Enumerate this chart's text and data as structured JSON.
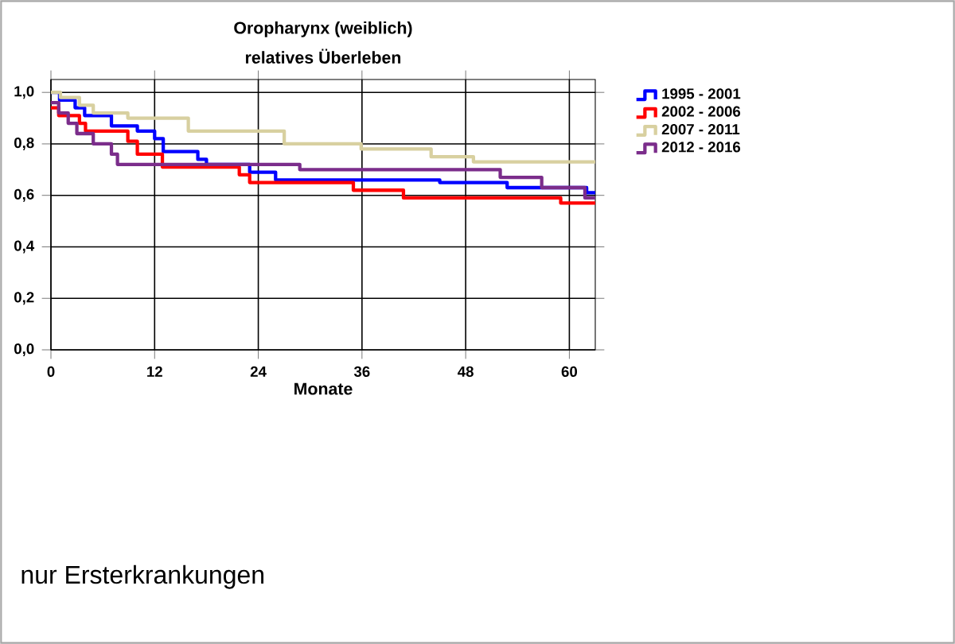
{
  "chart_data": {
    "type": "step",
    "title": "Oropharynx (weiblich)",
    "subtitle": "relatives Überleben",
    "xlabel": "Monate",
    "xlim": [
      0,
      63
    ],
    "xticks": [
      0,
      12,
      24,
      36,
      48,
      60
    ],
    "ylim": [
      0,
      1.05
    ],
    "yticks": [
      {
        "value": 0,
        "label": "0,0"
      },
      {
        "value": 0.2,
        "label": "0,2"
      },
      {
        "value": 0.4,
        "label": "0,4"
      },
      {
        "value": 0.6,
        "label": "0,6"
      },
      {
        "value": 0.8,
        "label": "0,8"
      },
      {
        "value": 1.0,
        "label": "1,0"
      }
    ],
    "grid": true,
    "legend": "top right",
    "marker": "none",
    "line_style": "solid",
    "series": [
      {
        "name": "1995 - 2001",
        "color": "#0000ff",
        "x": [
          0,
          1,
          2.8,
          3.9,
          7,
          10,
          12,
          13,
          17,
          18,
          23,
          26,
          45,
          52.8,
          62,
          63
        ],
        "values": [
          1.0,
          0.97,
          0.94,
          0.91,
          0.87,
          0.85,
          0.82,
          0.77,
          0.74,
          0.72,
          0.69,
          0.66,
          0.65,
          0.63,
          0.61,
          0.61
        ]
      },
      {
        "name": "2002 - 2006",
        "color": "#ff0000",
        "x": [
          0,
          0.9,
          3.3,
          4,
          8.9,
          10,
          12.9,
          21.8,
          23,
          35,
          40.8,
          59,
          63
        ],
        "values": [
          0.94,
          0.91,
          0.88,
          0.85,
          0.81,
          0.76,
          0.71,
          0.68,
          0.65,
          0.62,
          0.59,
          0.57,
          0.57
        ]
      },
      {
        "name": "2007 - 2011",
        "color": "#d8d0a0",
        "x": [
          0,
          1.1,
          3.3,
          4.9,
          8.9,
          15.9,
          27,
          35.9,
          44,
          48.9,
          63
        ],
        "values": [
          1.0,
          0.98,
          0.95,
          0.92,
          0.9,
          0.85,
          0.8,
          0.78,
          0.75,
          0.73,
          0.73
        ]
      },
      {
        "name": "2012 - 2016",
        "color": "#7b2d8b",
        "x": [
          0,
          0.9,
          2,
          3,
          4.9,
          7,
          7.7,
          28.8,
          52,
          56.8,
          61.8,
          63
        ],
        "values": [
          0.96,
          0.92,
          0.88,
          0.84,
          0.8,
          0.76,
          0.72,
          0.7,
          0.67,
          0.63,
          0.59,
          0.59
        ]
      }
    ],
    "annotations": [
      "nur Ersterkrankungen"
    ]
  }
}
